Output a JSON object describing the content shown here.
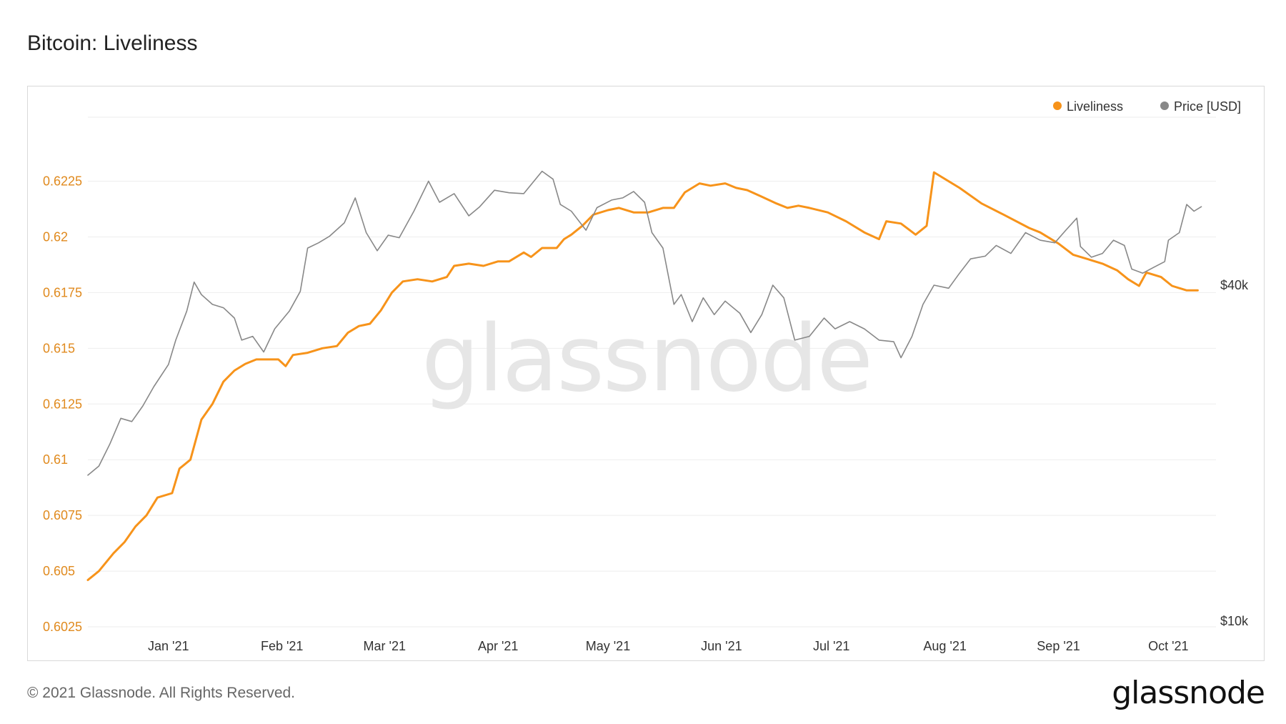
{
  "page": {
    "title": "Bitcoin: Liveliness",
    "watermark": "glassnode",
    "copyright": "© 2021 Glassnode. All Rights Reserved.",
    "logo": "glassnode"
  },
  "colors": {
    "liveliness": "#f7931a",
    "price": "#888888",
    "grid": "#eeeeee",
    "axis_left": "#e08a1e"
  },
  "chart_data": {
    "type": "line",
    "title": "Bitcoin: Liveliness",
    "legend": {
      "placement": "top-right",
      "items": [
        "Liveliness",
        "Price [USD]"
      ]
    },
    "grid": true,
    "x_range": [
      "2020-12-10",
      "2021-10-14"
    ],
    "x_ticks": [
      {
        "label": "Jan '21",
        "date": "2021-01-01"
      },
      {
        "label": "Feb '21",
        "date": "2021-02-01"
      },
      {
        "label": "Mar '21",
        "date": "2021-03-01"
      },
      {
        "label": "Apr '21",
        "date": "2021-04-01"
      },
      {
        "label": "May '21",
        "date": "2021-05-01"
      },
      {
        "label": "Jun '21",
        "date": "2021-06-01"
      },
      {
        "label": "Jul '21",
        "date": "2021-07-01"
      },
      {
        "label": "Aug '21",
        "date": "2021-08-01"
      },
      {
        "label": "Sep '21",
        "date": "2021-09-01"
      },
      {
        "label": "Oct '21",
        "date": "2021-10-01"
      }
    ],
    "y_left": {
      "range": [
        0.6025,
        0.6255
      ],
      "ticks": [
        "0.6025",
        "0.605",
        "0.6075",
        "0.61",
        "0.6125",
        "0.615",
        "0.6175",
        "0.62",
        "0.6225"
      ]
    },
    "y_right": {
      "scale": "log",
      "range": [
        10000,
        80000
      ],
      "ticks": [
        {
          "label": "$10k",
          "value": 10000
        },
        {
          "label": "$40k",
          "value": 40000
        }
      ]
    },
    "series": [
      {
        "name": "Liveliness",
        "axis": "left",
        "points": [
          [
            "2020-12-10",
            0.6046
          ],
          [
            "2020-12-13",
            0.605
          ],
          [
            "2020-12-17",
            0.6058
          ],
          [
            "2020-12-20",
            0.6063
          ],
          [
            "2020-12-23",
            0.607
          ],
          [
            "2020-12-26",
            0.6075
          ],
          [
            "2020-12-29",
            0.6083
          ],
          [
            "2021-01-02",
            0.6085
          ],
          [
            "2021-01-04",
            0.6096
          ],
          [
            "2021-01-07",
            0.61
          ],
          [
            "2021-01-10",
            0.6118
          ],
          [
            "2021-01-13",
            0.6125
          ],
          [
            "2021-01-16",
            0.6135
          ],
          [
            "2021-01-19",
            0.614
          ],
          [
            "2021-01-22",
            0.6143
          ],
          [
            "2021-01-25",
            0.6145
          ],
          [
            "2021-01-28",
            0.6145
          ],
          [
            "2021-01-31",
            0.6145
          ],
          [
            "2021-02-02",
            0.6142
          ],
          [
            "2021-02-04",
            0.6147
          ],
          [
            "2021-02-08",
            0.6148
          ],
          [
            "2021-02-12",
            0.615
          ],
          [
            "2021-02-16",
            0.6151
          ],
          [
            "2021-02-19",
            0.6157
          ],
          [
            "2021-02-22",
            0.616
          ],
          [
            "2021-02-25",
            0.6161
          ],
          [
            "2021-02-28",
            0.6167
          ],
          [
            "2021-03-03",
            0.6175
          ],
          [
            "2021-03-06",
            0.618
          ],
          [
            "2021-03-10",
            0.6181
          ],
          [
            "2021-03-14",
            0.618
          ],
          [
            "2021-03-18",
            0.6182
          ],
          [
            "2021-03-20",
            0.6187
          ],
          [
            "2021-03-24",
            0.6188
          ],
          [
            "2021-03-28",
            0.6187
          ],
          [
            "2021-04-01",
            0.6189
          ],
          [
            "2021-04-04",
            0.6189
          ],
          [
            "2021-04-08",
            0.6193
          ],
          [
            "2021-04-10",
            0.6191
          ],
          [
            "2021-04-13",
            0.6195
          ],
          [
            "2021-04-17",
            0.6195
          ],
          [
            "2021-04-19",
            0.6199
          ],
          [
            "2021-04-21",
            0.6201
          ],
          [
            "2021-04-24",
            0.6205
          ],
          [
            "2021-04-27",
            0.621
          ],
          [
            "2021-05-01",
            0.6212
          ],
          [
            "2021-05-04",
            0.6213
          ],
          [
            "2021-05-08",
            0.6211
          ],
          [
            "2021-05-12",
            0.6211
          ],
          [
            "2021-05-16",
            0.6213
          ],
          [
            "2021-05-19",
            0.6213
          ],
          [
            "2021-05-22",
            0.622
          ],
          [
            "2021-05-26",
            0.6224
          ],
          [
            "2021-05-29",
            0.6223
          ],
          [
            "2021-06-02",
            0.6224
          ],
          [
            "2021-06-05",
            0.6222
          ],
          [
            "2021-06-08",
            0.6221
          ],
          [
            "2021-06-12",
            0.6218
          ],
          [
            "2021-06-16",
            0.6215
          ],
          [
            "2021-06-19",
            0.6213
          ],
          [
            "2021-06-22",
            0.6214
          ],
          [
            "2021-06-25",
            0.6213
          ],
          [
            "2021-06-30",
            0.6211
          ],
          [
            "2021-07-05",
            0.6207
          ],
          [
            "2021-07-10",
            0.6202
          ],
          [
            "2021-07-14",
            0.6199
          ],
          [
            "2021-07-16",
            0.6207
          ],
          [
            "2021-07-20",
            0.6206
          ],
          [
            "2021-07-24",
            0.6201
          ],
          [
            "2021-07-27",
            0.6205
          ],
          [
            "2021-07-29",
            0.6229
          ],
          [
            "2021-08-05",
            0.6222
          ],
          [
            "2021-08-11",
            0.6215
          ],
          [
            "2021-08-17",
            0.621
          ],
          [
            "2021-08-24",
            0.6204
          ],
          [
            "2021-08-27",
            0.6202
          ],
          [
            "2021-09-01",
            0.6197
          ],
          [
            "2021-09-05",
            0.6192
          ],
          [
            "2021-09-09",
            0.619
          ],
          [
            "2021-09-13",
            0.6188
          ],
          [
            "2021-09-17",
            0.6185
          ],
          [
            "2021-09-20",
            0.6181
          ],
          [
            "2021-09-23",
            0.6178
          ],
          [
            "2021-09-25",
            0.6184
          ],
          [
            "2021-09-29",
            0.6182
          ],
          [
            "2021-10-02",
            0.6178
          ],
          [
            "2021-10-06",
            0.6176
          ],
          [
            "2021-10-09",
            0.6176
          ]
        ]
      },
      {
        "name": "Price [USD]",
        "axis": "right",
        "points": [
          [
            "2020-12-10",
            18500
          ],
          [
            "2020-12-13",
            19200
          ],
          [
            "2020-12-16",
            21000
          ],
          [
            "2020-12-19",
            23300
          ],
          [
            "2020-12-22",
            23000
          ],
          [
            "2020-12-25",
            24500
          ],
          [
            "2020-12-28",
            26500
          ],
          [
            "2021-01-01",
            29000
          ],
          [
            "2021-01-03",
            32000
          ],
          [
            "2021-01-06",
            36000
          ],
          [
            "2021-01-08",
            40500
          ],
          [
            "2021-01-10",
            38500
          ],
          [
            "2021-01-13",
            37000
          ],
          [
            "2021-01-16",
            36500
          ],
          [
            "2021-01-19",
            35000
          ],
          [
            "2021-01-21",
            32000
          ],
          [
            "2021-01-24",
            32500
          ],
          [
            "2021-01-27",
            30500
          ],
          [
            "2021-01-30",
            33500
          ],
          [
            "2021-02-03",
            36000
          ],
          [
            "2021-02-06",
            39000
          ],
          [
            "2021-02-08",
            46500
          ],
          [
            "2021-02-11",
            47500
          ],
          [
            "2021-02-14",
            48800
          ],
          [
            "2021-02-18",
            51500
          ],
          [
            "2021-02-21",
            57000
          ],
          [
            "2021-02-24",
            49500
          ],
          [
            "2021-02-27",
            46000
          ],
          [
            "2021-03-02",
            49000
          ],
          [
            "2021-03-05",
            48500
          ],
          [
            "2021-03-09",
            54000
          ],
          [
            "2021-03-13",
            61000
          ],
          [
            "2021-03-16",
            56000
          ],
          [
            "2021-03-20",
            58000
          ],
          [
            "2021-03-24",
            53000
          ],
          [
            "2021-03-27",
            55000
          ],
          [
            "2021-03-31",
            58800
          ],
          [
            "2021-04-04",
            58200
          ],
          [
            "2021-04-08",
            58000
          ],
          [
            "2021-04-13",
            63500
          ],
          [
            "2021-04-16",
            61500
          ],
          [
            "2021-04-18",
            55500
          ],
          [
            "2021-04-21",
            54000
          ],
          [
            "2021-04-25",
            50000
          ],
          [
            "2021-04-28",
            54800
          ],
          [
            "2021-05-02",
            56500
          ],
          [
            "2021-05-05",
            57000
          ],
          [
            "2021-05-08",
            58500
          ],
          [
            "2021-05-11",
            56000
          ],
          [
            "2021-05-13",
            49500
          ],
          [
            "2021-05-16",
            46500
          ],
          [
            "2021-05-19",
            37000
          ],
          [
            "2021-05-21",
            38500
          ],
          [
            "2021-05-24",
            34500
          ],
          [
            "2021-05-27",
            38000
          ],
          [
            "2021-05-30",
            35500
          ],
          [
            "2021-06-02",
            37500
          ],
          [
            "2021-06-06",
            35700
          ],
          [
            "2021-06-09",
            33000
          ],
          [
            "2021-06-12",
            35500
          ],
          [
            "2021-06-15",
            40000
          ],
          [
            "2021-06-18",
            38000
          ],
          [
            "2021-06-21",
            32000
          ],
          [
            "2021-06-25",
            32500
          ],
          [
            "2021-06-29",
            35000
          ],
          [
            "2021-07-02",
            33500
          ],
          [
            "2021-07-06",
            34500
          ],
          [
            "2021-07-10",
            33500
          ],
          [
            "2021-07-14",
            32000
          ],
          [
            "2021-07-18",
            31800
          ],
          [
            "2021-07-20",
            29800
          ],
          [
            "2021-07-23",
            32500
          ],
          [
            "2021-07-26",
            37000
          ],
          [
            "2021-07-29",
            40000
          ],
          [
            "2021-08-02",
            39500
          ],
          [
            "2021-08-05",
            42000
          ],
          [
            "2021-08-08",
            44500
          ],
          [
            "2021-08-12",
            45000
          ],
          [
            "2021-08-15",
            47000
          ],
          [
            "2021-08-19",
            45500
          ],
          [
            "2021-08-23",
            49500
          ],
          [
            "2021-08-27",
            48000
          ],
          [
            "2021-08-31",
            47500
          ],
          [
            "2021-09-03",
            50000
          ],
          [
            "2021-09-06",
            52500
          ],
          [
            "2021-09-07",
            46800
          ],
          [
            "2021-09-10",
            44800
          ],
          [
            "2021-09-13",
            45500
          ],
          [
            "2021-09-16",
            48000
          ],
          [
            "2021-09-19",
            47000
          ],
          [
            "2021-09-21",
            42700
          ],
          [
            "2021-09-24",
            42000
          ],
          [
            "2021-09-27",
            43000
          ],
          [
            "2021-09-30",
            44000
          ],
          [
            "2021-10-01",
            48000
          ],
          [
            "2021-10-04",
            49500
          ],
          [
            "2021-10-06",
            55500
          ],
          [
            "2021-10-08",
            54000
          ],
          [
            "2021-10-10",
            55000
          ]
        ]
      }
    ]
  }
}
